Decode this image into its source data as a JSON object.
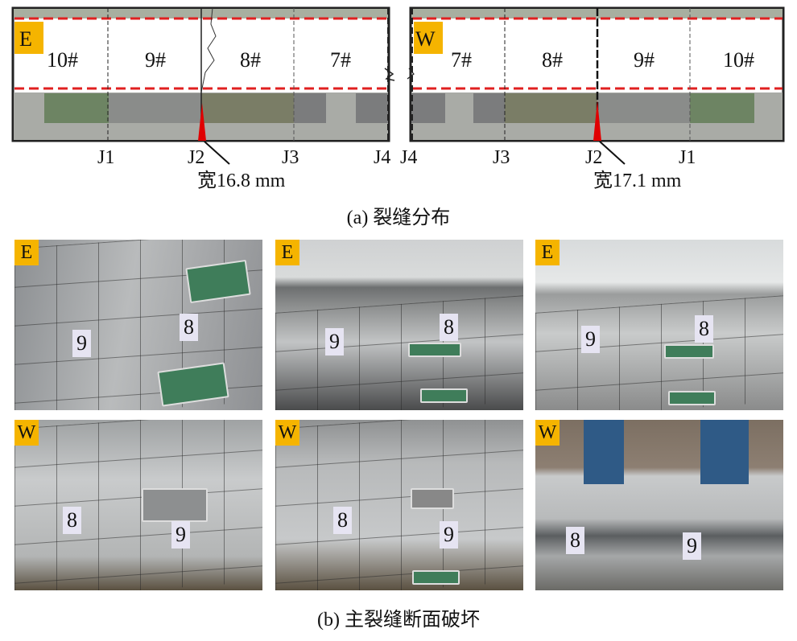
{
  "panel_a": {
    "east": {
      "badge": "E",
      "segments": [
        "10#",
        "9#",
        "8#",
        "7#"
      ],
      "joints": [
        "J1",
        "J2",
        "J3",
        "J4"
      ],
      "crack_width": "宽16.8 mm"
    },
    "west": {
      "badge": "W",
      "segments": [
        "7#",
        "8#",
        "9#",
        "10#"
      ],
      "joints": [
        "J4",
        "J3",
        "J2",
        "J1"
      ],
      "crack_width": "宽17.1 mm"
    },
    "caption": "(a)   裂缝分布"
  },
  "panel_b": {
    "photos": [
      {
        "badge": "E",
        "labels": [
          "9",
          "8"
        ]
      },
      {
        "badge": "E",
        "labels": [
          "9",
          "8"
        ]
      },
      {
        "badge": "E",
        "labels": [
          "9",
          "8"
        ]
      },
      {
        "badge": "W",
        "labels": [
          "8",
          "9"
        ]
      },
      {
        "badge": "W",
        "labels": [
          "8",
          "9"
        ]
      },
      {
        "badge": "W",
        "labels": [
          "8",
          "9"
        ]
      }
    ],
    "caption": "(b)   主裂缝断面破坏"
  },
  "colors": {
    "badge": "#f5b400",
    "crack": "#e00000",
    "dashed_boundary": "#e02020"
  }
}
